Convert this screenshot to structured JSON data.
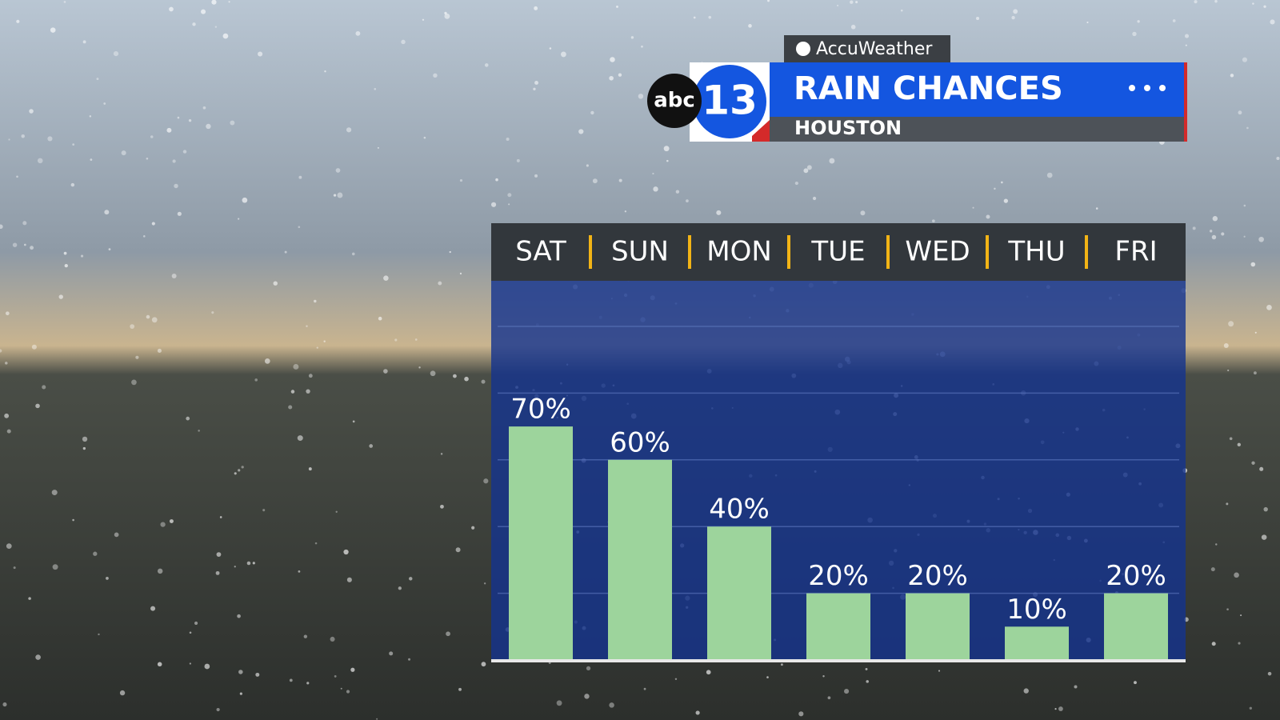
{
  "brand": "AccuWeather",
  "logo": {
    "network": "abc",
    "channel": "13"
  },
  "chart_data": {
    "type": "bar",
    "title": "RAIN CHANCES",
    "subtitle": "HOUSTON",
    "categories": [
      "SAT",
      "SUN",
      "MON",
      "TUE",
      "WED",
      "THU",
      "FRI"
    ],
    "values": [
      70,
      60,
      40,
      20,
      20,
      10,
      20
    ],
    "value_labels": [
      "70%",
      "60%",
      "40%",
      "20%",
      "20%",
      "10%",
      "20%"
    ],
    "color": "#9dd49c",
    "ylim": [
      0,
      100
    ],
    "yticks": [
      20,
      40,
      60,
      80,
      100
    ],
    "grid": true
  }
}
